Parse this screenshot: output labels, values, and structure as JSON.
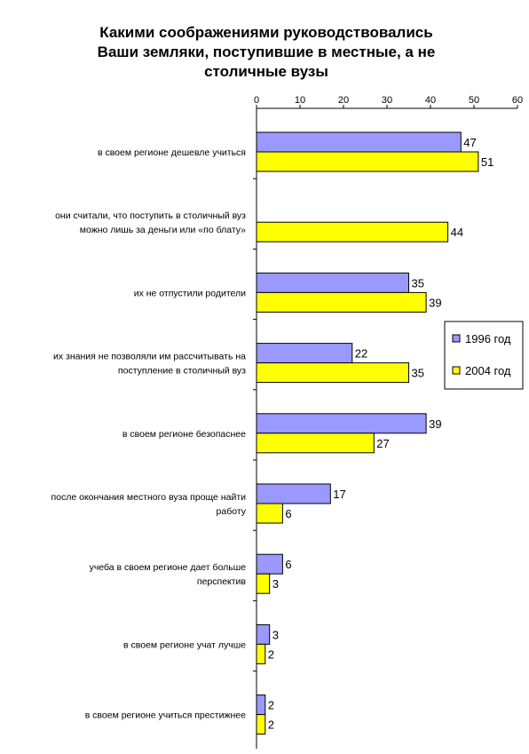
{
  "chart_data": {
    "type": "bar",
    "orientation": "horizontal",
    "title": [
      "Какими соображениями руководствовались",
      "Ваши земляки, поступившие в местные, а не",
      "столичные вузы"
    ],
    "xlabel": "",
    "ylabel": "",
    "xlim": [
      0,
      60
    ],
    "ticks": [
      0,
      10,
      20,
      30,
      40,
      50,
      60
    ],
    "axis_position": "top",
    "grid": false,
    "legend_position": "right",
    "categories": [
      [
        "в своем регионе дешевле учиться"
      ],
      [
        "они считали, что поступить в столичный вуз",
        "можно лишь за деньги или «по блату»"
      ],
      [
        "их не отпустили родители"
      ],
      [
        "их знания не позволяли им рассчитывать на",
        "поступление в столичный вуз"
      ],
      [
        "в своем регионе безопаснее"
      ],
      [
        "после окончания местного вуза проще найти",
        "работу"
      ],
      [
        "учеба в своем регионе дает больше",
        "перспектив"
      ],
      [
        "в своем регионе учат лучше"
      ],
      [
        "в своем регионе учиться престижнее"
      ]
    ],
    "series": [
      {
        "name": "1996 год",
        "color": "#9999ff",
        "values": [
          47,
          null,
          35,
          22,
          39,
          17,
          6,
          3,
          2
        ]
      },
      {
        "name": "2004 год",
        "color": "#ffff00",
        "values": [
          51,
          44,
          39,
          35,
          27,
          6,
          3,
          2,
          2
        ]
      }
    ]
  }
}
